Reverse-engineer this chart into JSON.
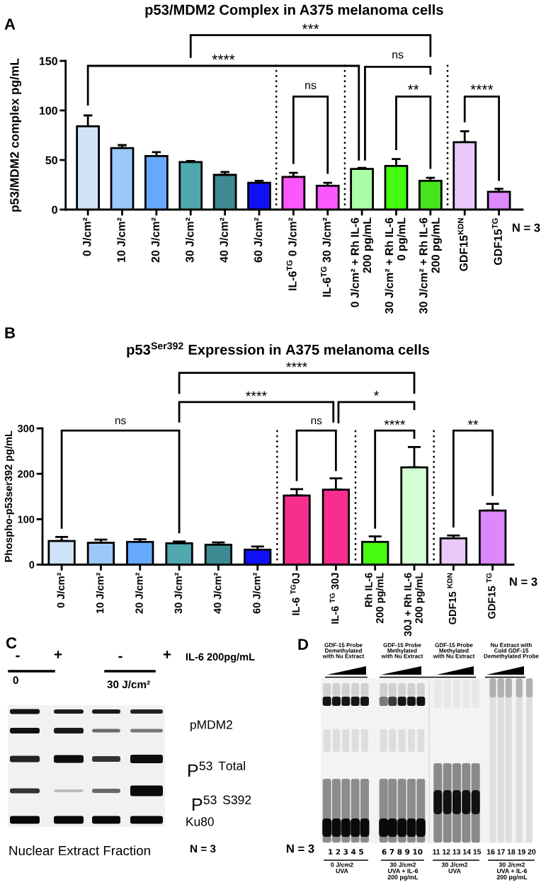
{
  "chart_data": [
    {
      "type": "bar",
      "title": "p53/MDM2 Complex in A375 melanoma cells",
      "ylabel": "p53/MDM2 complex pg/mL",
      "categories": [
        "0 J/cm²",
        "10 J/cm²",
        "20 J/cm²",
        "30 J/cm²",
        "40 J/cm²",
        "60 J/cm²",
        "IL-6$^{TG}$ 0 J/cm²",
        "IL-6$^{TG}$ 30 J/cm²",
        "0 J/cm² + Rh IL-6\n200 pg/mL",
        "30 J/cm² + Rh IL-6\n0 pg/mL",
        "30 J/cm² + Rh IL-6\n200 pg/mL",
        "GDF15$^{KDN}$",
        "GDF15$^{TG}$"
      ],
      "values": [
        84,
        62,
        54,
        48,
        35,
        27,
        33,
        24,
        41,
        44,
        29,
        68,
        18
      ],
      "errors": [
        [
          84,
          95
        ],
        [
          62,
          65
        ],
        [
          54,
          58
        ],
        [
          48,
          49
        ],
        [
          35,
          38
        ],
        [
          27,
          29
        ],
        [
          33,
          37
        ],
        [
          24,
          27
        ],
        [
          41,
          42
        ],
        [
          44,
          51
        ],
        [
          29,
          32
        ],
        [
          68,
          79
        ],
        [
          18,
          21
        ]
      ],
      "colors": [
        "#cfe2f7",
        "#9cc8f8",
        "#66a8fa",
        "#4ea8ae",
        "#3e8a92",
        "#1010f8",
        "#fb57fb",
        "#fb57fb",
        "#adfca6",
        "#45fb10",
        "#46e41c",
        "#e9c9f9",
        "#dc88fb"
      ],
      "ylim": [
        0,
        150
      ],
      "yticks": [
        0,
        50,
        100,
        150
      ],
      "annotations": [
        "A",
        "***",
        "****",
        "ns",
        "ns",
        "**",
        "****",
        "N = 3"
      ]
    },
    {
      "type": "bar",
      "title": "p53$^{Ser392}$ Expression in A375 melanoma cells",
      "ylabel": "Phospho-p53ser392 pg/mL",
      "categories": [
        "0 J/cm²",
        "10 J/cm²",
        "20 J/cm²",
        "30 J/cm²",
        "40 J/cm²",
        "60 J/cm²",
        "IL-6 $^{TG}$0J",
        "IL-6 $^{TG}$ 30J",
        "Rh IL-6\n200 pg/mL",
        "30J + Rh IL-6\n200 pg/mL",
        "GDF15 $^{KDN}$",
        "GDF15 $^{TG}$"
      ],
      "values": [
        52,
        48,
        50,
        47,
        44,
        33,
        152,
        165,
        50,
        214,
        58,
        119
      ],
      "errors": [
        [
          52,
          61
        ],
        [
          48,
          55
        ],
        [
          50,
          56
        ],
        [
          47,
          51
        ],
        [
          44,
          49
        ],
        [
          33,
          40
        ],
        [
          152,
          166
        ],
        [
          165,
          190
        ],
        [
          50,
          62
        ],
        [
          214,
          259
        ],
        [
          58,
          64
        ],
        [
          119,
          134
        ]
      ],
      "colors": [
        "#cfe2f7",
        "#9cc8f8",
        "#66a8fa",
        "#4ea8ae",
        "#3e8a92",
        "#1010f8",
        "#f72e8d",
        "#f72e8d",
        "#45fb10",
        "#d3fdd3",
        "#e9c9f9",
        "#dc88fb"
      ],
      "ylim": [
        0,
        300
      ],
      "yticks": [
        0,
        100,
        200,
        300
      ],
      "annotations": [
        "B",
        "****",
        "****",
        "*",
        "ns",
        "ns",
        "****",
        "**",
        "N = 3"
      ]
    },
    {
      "type": "other",
      "annotations": [
        "C",
        "-",
        "+",
        "-",
        "+",
        "IL-6 200pg/mL",
        "0",
        "30 J/cm²",
        "pMDM2",
        "P$^{53}$ $^{Total}$",
        "P$^{53}$ $^{S392}$",
        "Ku80",
        "Nuclear Extract Fraction",
        "N = 3"
      ]
    },
    {
      "type": "other",
      "annotations": [
        "D",
        "GDF-15 Probe\nDemethylated\nwith Nu Extract",
        "GDF-15 Probe\nMethylated\nwith Nu Extract",
        "GDF-15 Probe\nMethylated\nwith Nu Extract",
        "Nu Extract with\nCold GDF-15\nDemethylated Probe",
        "1 2 3 4 5",
        "6 7 8 9 10",
        "11 12 13 14 15",
        "16 17 18 19 20",
        "0 J/cm2\nUVA",
        "30 J/cm2\nUVA + IL-6\n200 pg/mL",
        "30 J/cm2\nUVA",
        "30 J/cm2\nUVA + IL-6\n200 pg/mL",
        "N = 3"
      ]
    }
  ]
}
